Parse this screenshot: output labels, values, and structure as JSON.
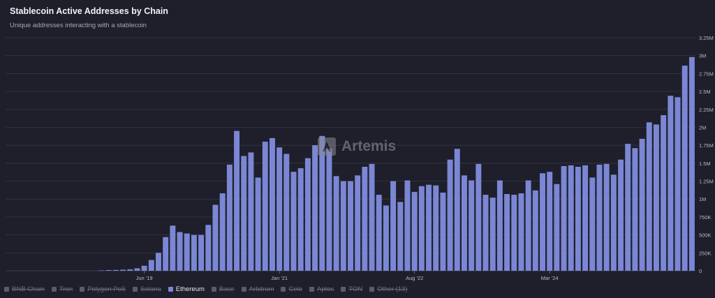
{
  "header": {
    "title": "Stablecoin Active Addresses by Chain",
    "subtitle": "Unique addresses interacting with a stablecoin"
  },
  "watermark": {
    "text": "Artemis"
  },
  "legend": [
    {
      "label": "BNB Chain",
      "active": false
    },
    {
      "label": "Tron",
      "active": false
    },
    {
      "label": "Polygon PoS",
      "active": false
    },
    {
      "label": "Solana",
      "active": false
    },
    {
      "label": "Ethereum",
      "active": true
    },
    {
      "label": "Base",
      "active": false
    },
    {
      "label": "Arbitrum",
      "active": false
    },
    {
      "label": "Celo",
      "active": false
    },
    {
      "label": "Aptos",
      "active": false
    },
    {
      "label": "TON",
      "active": false
    },
    {
      "label": "Other (13)",
      "active": false
    }
  ],
  "colors": {
    "bar": "#7b87d4",
    "background": "#1e1f2b",
    "grid": "#3a3b48",
    "axis_text": "#b9bac6"
  },
  "chart_data": {
    "type": "bar",
    "title": "Stablecoin Active Addresses by Chain",
    "subtitle": "Unique addresses interacting with a stablecoin",
    "grid": true,
    "y_axis_side": "right",
    "ylim": [
      0,
      3250000
    ],
    "y_ticks": [
      0,
      250000,
      500000,
      750000,
      1000000,
      1250000,
      1500000,
      1750000,
      2000000,
      2250000,
      2500000,
      2750000,
      3000000,
      3250000
    ],
    "y_tick_labels": [
      "0",
      "250K",
      "500K",
      "750K",
      "1M",
      "1.25M",
      "1.5M",
      "1.75M",
      "2M",
      "2.25M",
      "2.5M",
      "2.75M",
      "3M",
      "3.25M"
    ],
    "x_tick_labels": [
      {
        "label": "Jun '19",
        "index": 19
      },
      {
        "label": "Jan '21",
        "index": 38
      },
      {
        "label": "Aug '22",
        "index": 57
      },
      {
        "label": "Mar '24",
        "index": 76
      }
    ],
    "series": [
      {
        "name": "Ethereum",
        "values": [
          0,
          0,
          0,
          0,
          0,
          0,
          0,
          0,
          0,
          0,
          0,
          0,
          0,
          5000,
          10000,
          12000,
          15000,
          20000,
          35000,
          70000,
          150000,
          250000,
          470000,
          630000,
          540000,
          520000,
          500000,
          500000,
          640000,
          920000,
          1080000,
          1480000,
          1950000,
          1600000,
          1650000,
          1300000,
          1800000,
          1850000,
          1720000,
          1630000,
          1380000,
          1430000,
          1570000,
          1750000,
          1880000,
          1700000,
          1320000,
          1250000,
          1250000,
          1330000,
          1450000,
          1490000,
          1060000,
          910000,
          1250000,
          960000,
          1260000,
          1100000,
          1180000,
          1200000,
          1190000,
          1090000,
          1550000,
          1700000,
          1330000,
          1260000,
          1490000,
          1060000,
          1020000,
          1260000,
          1070000,
          1060000,
          1080000,
          1260000,
          1120000,
          1360000,
          1380000,
          1210000,
          1460000,
          1470000,
          1450000,
          1470000,
          1300000,
          1480000,
          1490000,
          1340000,
          1550000,
          1770000,
          1710000,
          1840000,
          2070000,
          2040000,
          2170000,
          2440000,
          2420000,
          2860000,
          2980000
        ]
      }
    ]
  }
}
